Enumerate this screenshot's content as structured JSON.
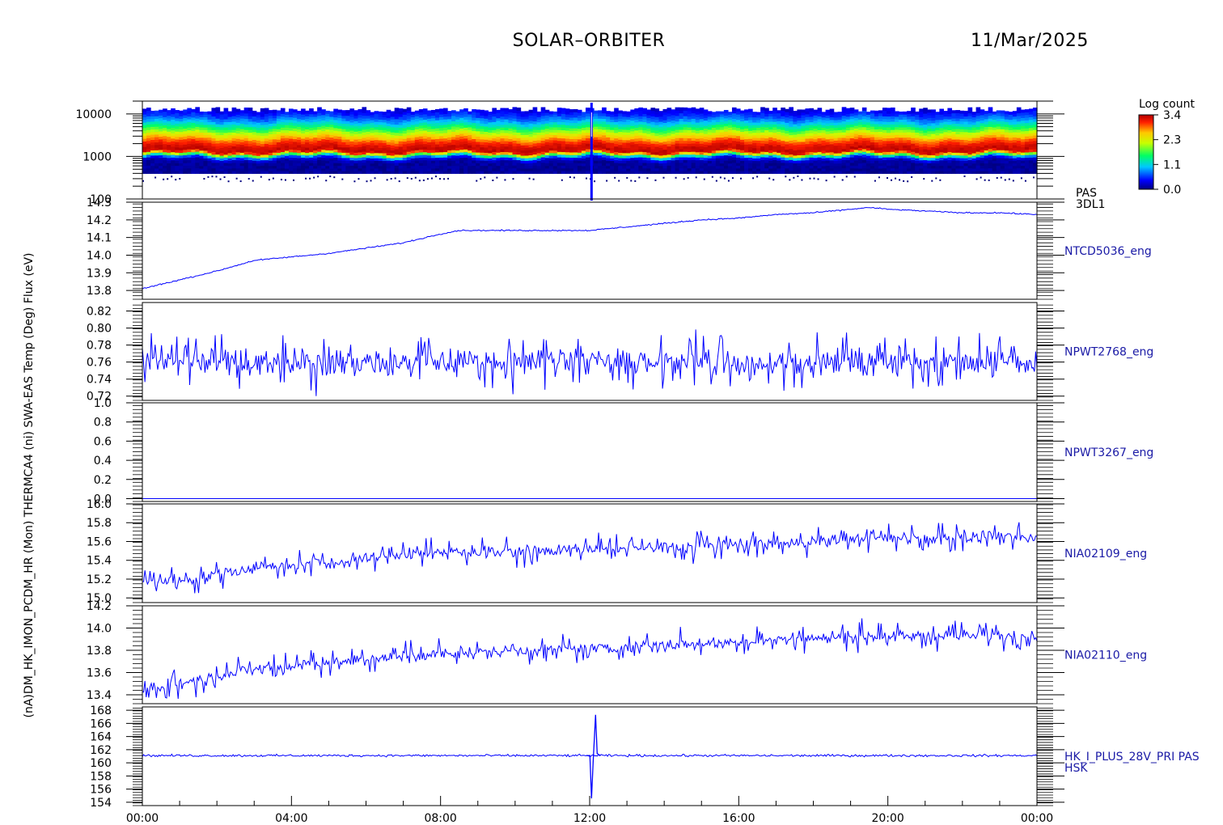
{
  "header": {
    "title": "SOLAR–ORBITER",
    "date": "11/Mar/2025"
  },
  "colors": {
    "trace": "#0000ff",
    "label": "#1a1aa6",
    "axis": "#000000"
  },
  "chart_data": {
    "type": "line",
    "x_axis": {
      "range": [
        "00:00",
        "24:00"
      ],
      "tick_labels": [
        "00:00",
        "04:00",
        "08:00",
        "12:00",
        "16:00",
        "20:00",
        "00:00"
      ],
      "tick_hours": [
        0,
        4,
        8,
        12,
        16,
        20,
        24
      ]
    },
    "ylabel": "(nA)DM_HK_IMON_PCDM_HR (Mon) THERMCA4 (ni) SWA-EAS Temp (Deg) Flux (eV)",
    "panels": [
      {
        "id": "pas-3dl1",
        "type": "heatmap",
        "ylog": true,
        "ylim": [
          100,
          20000
        ],
        "yticks": [
          100,
          1000,
          10000
        ],
        "ytick_labels": [
          "100",
          "1000",
          "10000"
        ],
        "right_label": [
          "PAS",
          "3DL1"
        ],
        "colorbar": {
          "title": "Log count",
          "range": [
            0.0,
            3.4
          ],
          "tick_labels": [
            "3.4",
            "2.3",
            "1.1",
            "0.0"
          ]
        },
        "peak_energy_ev": 1400,
        "energy_band_ev": [
          400,
          12000
        ],
        "anomaly_hour": 12.05
      },
      {
        "id": "ntcd5036",
        "ylim": [
          13.75,
          14.3
        ],
        "yticks": [
          13.8,
          13.9,
          14.0,
          14.1,
          14.2,
          14.3
        ],
        "ytick_labels": [
          "13.8",
          "13.9",
          "14.0",
          "14.1",
          "14.2",
          "14.3"
        ],
        "right_label": [
          "NTCD5036_eng"
        ],
        "series": [
          {
            "x": [
              0,
              1,
              2,
              2.5,
              3,
              4,
              5,
              6,
              7,
              8,
              8.5,
              9,
              10,
              11,
              12,
              13,
              14,
              15,
              16,
              17,
              18,
              19,
              19.5,
              20,
              21,
              22,
              23,
              24
            ],
            "y": [
              13.81,
              13.86,
              13.91,
              13.94,
              13.97,
              13.99,
              14.01,
              14.04,
              14.07,
              14.12,
              14.14,
              14.14,
              14.14,
              14.14,
              14.14,
              14.16,
              14.18,
              14.2,
              14.21,
              14.23,
              14.24,
              14.26,
              14.27,
              14.26,
              14.25,
              14.24,
              14.24,
              14.23
            ]
          }
        ],
        "noise": 0.003
      },
      {
        "id": "npwt2768",
        "ylim": [
          0.715,
          0.83
        ],
        "yticks": [
          0.72,
          0.74,
          0.76,
          0.78,
          0.8,
          0.82
        ],
        "ytick_labels": [
          "0.72",
          "0.74",
          "0.76",
          "0.78",
          "0.80",
          "0.82"
        ],
        "right_label": [
          "NPWT2768_eng"
        ],
        "series": [
          {
            "x": [
              0,
              24
            ],
            "y": [
              0.76,
              0.76
            ]
          }
        ],
        "noise": 0.012,
        "spikes": 0.03
      },
      {
        "id": "npwt3267",
        "ylim": [
          -0.03,
          1.0
        ],
        "yticks": [
          0.0,
          0.2,
          0.4,
          0.6,
          0.8,
          1.0
        ],
        "ytick_labels": [
          "0.0",
          "0.2",
          "0.4",
          "0.6",
          "0.8",
          "1.0"
        ],
        "right_label": [
          "NPWT3267_eng"
        ],
        "series": [
          {
            "x": [
              0,
              24
            ],
            "y": [
              0.0,
              0.0
            ]
          }
        ],
        "noise": 0.0
      },
      {
        "id": "nia02109",
        "ylim": [
          14.95,
          16.0
        ],
        "yticks": [
          15.0,
          15.2,
          15.4,
          15.6,
          15.8,
          16.0
        ],
        "ytick_labels": [
          "15.0",
          "15.2",
          "15.4",
          "15.6",
          "15.8",
          "16.0"
        ],
        "right_label": [
          "NIA02109_eng"
        ],
        "series": [
          {
            "x": [
              0,
              1.5,
              2,
              3,
              5,
              6,
              7,
              9,
              11,
              13,
              15,
              17,
              18,
              19,
              21,
              24
            ],
            "y": [
              15.17,
              15.2,
              15.27,
              15.33,
              15.37,
              15.42,
              15.47,
              15.5,
              15.5,
              15.52,
              15.55,
              15.57,
              15.6,
              15.63,
              15.64,
              15.64
            ]
          }
        ],
        "noise": 0.05,
        "spikes": 0.15
      },
      {
        "id": "nia02110",
        "ylim": [
          13.32,
          14.2
        ],
        "yticks": [
          13.4,
          13.6,
          13.8,
          14.0,
          14.2
        ],
        "ytick_labels": [
          "13.4",
          "13.6",
          "13.8",
          "14.0",
          "14.2"
        ],
        "right_label": [
          "NIA02110_eng"
        ],
        "series": [
          {
            "x": [
              0,
              1,
              2,
              3,
              4,
              6,
              8,
              10,
              12,
              14,
              16,
              18,
              20,
              22,
              24
            ],
            "y": [
              13.43,
              13.5,
              13.57,
              13.63,
              13.66,
              13.72,
              13.77,
              13.8,
              13.82,
              13.85,
              13.88,
              13.91,
              13.93,
              13.93,
              13.93
            ]
          }
        ],
        "noise": 0.04,
        "spikes": 0.12
      },
      {
        "id": "hk-i-plus-28v",
        "ylim": [
          153.5,
          168.5
        ],
        "yticks": [
          154,
          156,
          158,
          160,
          162,
          164,
          166,
          168
        ],
        "ytick_labels": [
          "154",
          "156",
          "158",
          "160",
          "162",
          "164",
          "166",
          "168"
        ],
        "right_label": [
          "HK_I_PLUS_28V_PRI PAS",
          "HSK"
        ],
        "series": [
          {
            "x": [
              0,
              24
            ],
            "y": [
              161.1,
              161.1
            ]
          }
        ],
        "noise": 0.15,
        "event": {
          "hour": 12.05,
          "min": 154.6,
          "max": 167.3
        }
      }
    ]
  }
}
